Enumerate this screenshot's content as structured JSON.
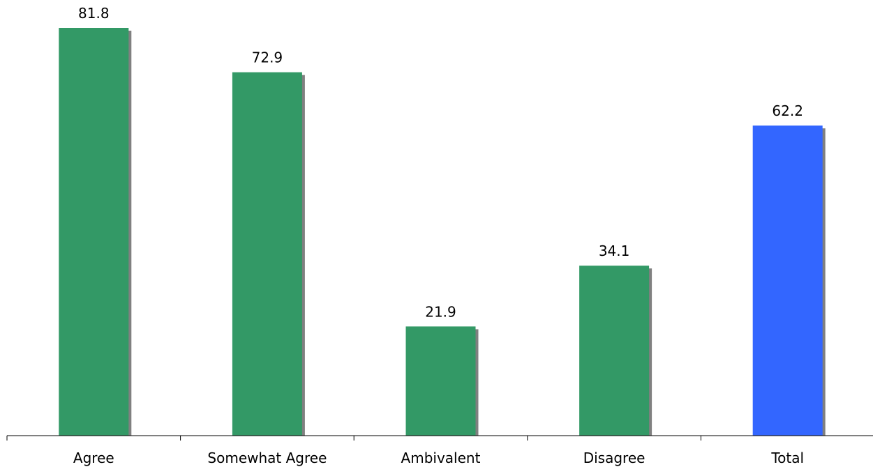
{
  "chart_data": {
    "type": "bar",
    "categories": [
      "Agree",
      "Somewhat Agree",
      "Ambivalent",
      "Disagree",
      "Total"
    ],
    "values": [
      81.8,
      72.9,
      21.9,
      34.1,
      62.2
    ],
    "value_labels": [
      "81.8",
      "72.9",
      "21.9",
      "34.1",
      "62.2"
    ],
    "bar_colors": [
      "#339966",
      "#339966",
      "#339966",
      "#339966",
      "#3366FF"
    ],
    "shadow_color": "#808080",
    "axis_color": "#000000",
    "ylim": [
      0,
      87
    ],
    "grid": false,
    "legend": "none"
  }
}
